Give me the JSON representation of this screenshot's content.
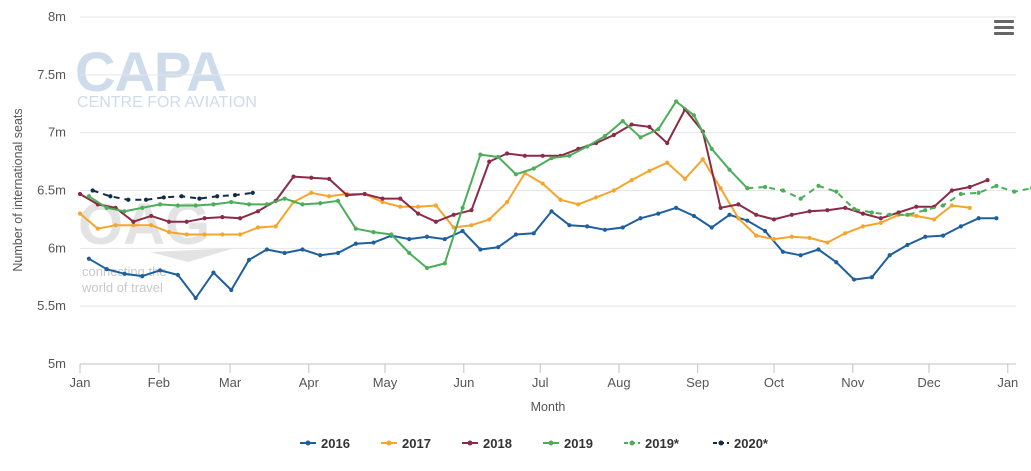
{
  "menu_icon": "hamburger-menu-icon",
  "watermarks": {
    "capa_logo": "CAPA",
    "capa_sub": "CENTRE FOR AVIATION",
    "oag_logo": "OAG",
    "oag_tag_line1": "connecting the",
    "oag_tag_line2": "world of travel"
  },
  "chart_data": {
    "type": "line",
    "xlabel": "Month",
    "ylabel": "Number of international seats",
    "ylim": [
      5000000,
      8000000
    ],
    "xlim": [
      0,
      52.6
    ],
    "y_ticks": [
      {
        "value": 5000000,
        "label": "5m"
      },
      {
        "value": 5500000,
        "label": "5.5m"
      },
      {
        "value": 6000000,
        "label": "6m"
      },
      {
        "value": 6500000,
        "label": "6.5m"
      },
      {
        "value": 7000000,
        "label": "7m"
      },
      {
        "value": 7500000,
        "label": "7.5m"
      },
      {
        "value": 8000000,
        "label": "8m"
      }
    ],
    "x_ticks": [
      {
        "value": 0.0,
        "label": "Jan"
      },
      {
        "value": 4.43,
        "label": "Feb"
      },
      {
        "value": 8.43,
        "label": "Mar"
      },
      {
        "value": 12.86,
        "label": "Apr"
      },
      {
        "value": 17.14,
        "label": "May"
      },
      {
        "value": 21.57,
        "label": "Jun"
      },
      {
        "value": 25.86,
        "label": "Jul"
      },
      {
        "value": 30.29,
        "label": "Aug"
      },
      {
        "value": 34.71,
        "label": "Sep"
      },
      {
        "value": 39.0,
        "label": "Oct"
      },
      {
        "value": 43.43,
        "label": "Nov"
      },
      {
        "value": 47.71,
        "label": "Dec"
      },
      {
        "value": 52.14,
        "label": "Jan"
      }
    ],
    "grid": true,
    "legend_position": "bottom-center",
    "series": [
      {
        "name": "2016",
        "color": "#1f5f9e",
        "dash": "solid",
        "x_start": 0.5,
        "values": [
          5.91,
          5.82,
          5.78,
          5.76,
          5.81,
          5.77,
          5.57,
          5.79,
          5.64,
          5.9,
          5.99,
          5.96,
          5.99,
          5.94,
          5.96,
          6.04,
          6.05,
          6.11,
          6.08,
          6.1,
          6.08,
          6.15,
          5.99,
          6.01,
          6.12,
          6.13,
          6.32,
          6.2,
          6.19,
          6.16,
          6.18,
          6.26,
          6.3,
          6.35,
          6.28,
          6.18,
          6.29,
          6.24,
          6.15,
          5.97,
          5.94,
          5.99,
          5.88,
          5.73,
          5.75,
          5.94,
          6.03,
          6.1,
          6.11,
          6.19,
          6.26,
          6.26
        ]
      },
      {
        "name": "2017",
        "color": "#f5a52e",
        "dash": "solid",
        "x_start": 0.0,
        "values": [
          6.3,
          6.17,
          6.2,
          6.2,
          6.2,
          6.14,
          6.12,
          6.12,
          6.12,
          6.12,
          6.18,
          6.19,
          6.4,
          6.48,
          6.45,
          6.47,
          6.47,
          6.4,
          6.36,
          6.36,
          6.37,
          6.18,
          6.2,
          6.25,
          6.4,
          6.65,
          6.56,
          6.42,
          6.38,
          6.44,
          6.5,
          6.59,
          6.67,
          6.74,
          6.6,
          6.77,
          6.52,
          6.26,
          6.11,
          6.08,
          6.1,
          6.09,
          6.05,
          6.13,
          6.19,
          6.22,
          6.29,
          6.28,
          6.25,
          6.37,
          6.35
        ]
      },
      {
        "name": "2018",
        "color": "#8b2b45",
        "dash": "solid",
        "x_start": 0.0,
        "values": [
          6.47,
          6.38,
          6.35,
          6.23,
          6.28,
          6.23,
          6.23,
          6.26,
          6.27,
          6.26,
          6.32,
          6.41,
          6.62,
          6.61,
          6.6,
          6.46,
          6.47,
          6.43,
          6.43,
          6.3,
          6.23,
          6.29,
          6.33,
          6.75,
          6.82,
          6.8,
          6.8,
          6.8,
          6.86,
          6.91,
          6.98,
          7.07,
          7.05,
          6.91,
          7.2,
          7.01,
          6.35,
          6.38,
          6.29,
          6.25,
          6.29,
          6.32,
          6.33,
          6.35,
          6.3,
          6.26,
          6.31,
          6.36,
          6.36,
          6.5,
          6.53,
          6.59
        ]
      },
      {
        "name": "2019",
        "color": "#4cae58",
        "dash": "solid",
        "x_start": 0.5,
        "values": [
          6.45,
          6.35,
          6.32,
          6.35,
          6.38,
          6.37,
          6.37,
          6.38,
          6.4,
          6.38,
          6.38,
          6.43,
          6.38,
          6.39,
          6.41,
          6.17,
          6.14,
          6.12,
          5.96,
          5.83,
          5.87,
          6.35,
          6.81,
          6.79,
          6.64,
          6.69,
          6.78,
          6.8,
          6.88,
          6.97,
          7.1,
          6.96,
          7.03,
          7.27,
          7.15,
          6.86,
          6.68,
          6.52
        ]
      },
      {
        "name": "2019*",
        "color": "#4cae58",
        "dash": "dashed",
        "x_start": 37.5,
        "values": [
          6.52,
          6.53,
          6.5,
          6.43,
          6.54,
          6.49,
          6.34,
          6.31,
          6.29,
          6.29,
          6.33,
          6.37,
          6.47,
          6.48,
          6.54,
          6.49,
          6.52
        ]
      },
      {
        "name": "2020*",
        "color": "#102c46",
        "dash": "dashed",
        "x_start": 0.71,
        "values": [
          6.5,
          6.45,
          6.42,
          6.42,
          6.44,
          6.45,
          6.43,
          6.45,
          6.46,
          6.48
        ]
      }
    ]
  }
}
